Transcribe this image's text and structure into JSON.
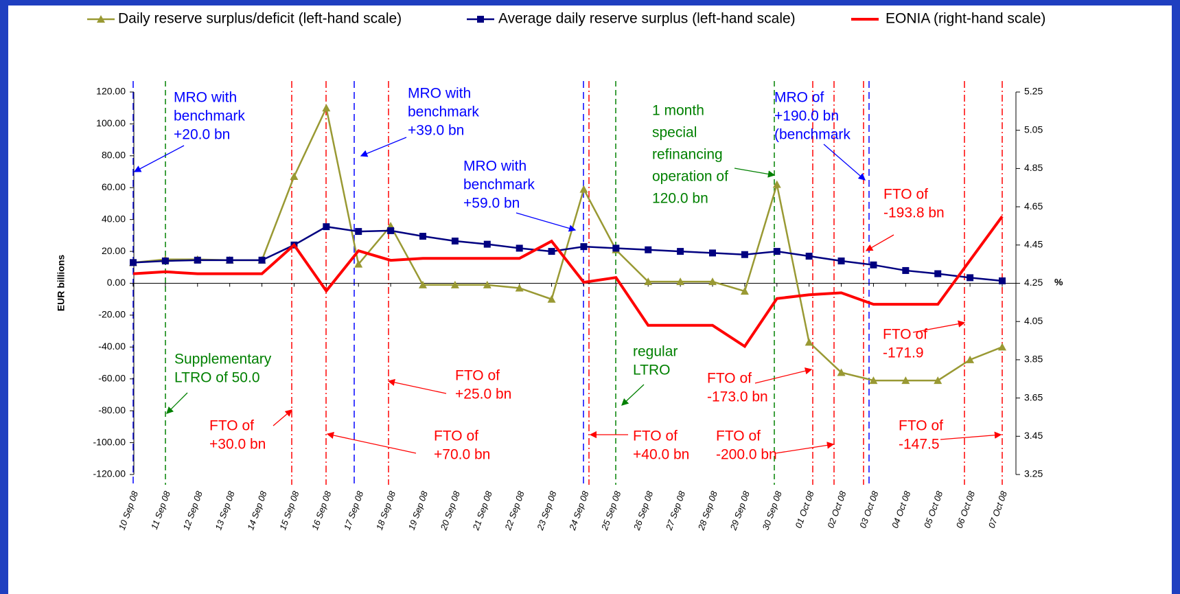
{
  "chart_data": {
    "type": "line",
    "categories": [
      "10 Sep 08",
      "11 Sep 08",
      "12 Sep 08",
      "13 Sep 08",
      "14 Sep 08",
      "15 Sep 08",
      "16 Sep 08",
      "17 Sep 08",
      "18 Sep 08",
      "19 Sep 08",
      "20 Sep 08",
      "21 Sep 08",
      "22 Sep 08",
      "23 Sep 08",
      "24 Sep 08",
      "25 Sep 08",
      "26 Sep 08",
      "27 Sep 08",
      "28 Sep 08",
      "29 Sep 08",
      "30 Sep 08",
      "01 Oct 08",
      "02 Oct 08",
      "03 Oct 08",
      "04 Oct 08",
      "05 Oct 08",
      "06 Oct 08",
      "07 Oct 08"
    ],
    "series": [
      {
        "name": "Daily reserve surplus/deficit (left-hand scale)",
        "color": "#999933",
        "marker": "triangle",
        "values": [
          13,
          15,
          15,
          14.5,
          14.5,
          67,
          110,
          12,
          36,
          -1,
          -1,
          -1,
          -3,
          -10,
          59,
          21,
          1,
          1,
          1,
          -5,
          62,
          -37,
          -56,
          -61,
          -61,
          -61,
          -48,
          -40
        ]
      },
      {
        "name": "Average daily reserve surplus (left-hand scale)",
        "color": "#000080",
        "marker": "square",
        "values": [
          13,
          14,
          14.5,
          14.5,
          14.5,
          24,
          35.5,
          32.5,
          33,
          29.5,
          26.5,
          24.5,
          22,
          20,
          23,
          22,
          21,
          20,
          19,
          18,
          20,
          17,
          14,
          11.5,
          8,
          6,
          3.5,
          1.5
        ]
      },
      {
        "name": "EONIA (right-hand scale)",
        "color": "#ff0000",
        "marker": "none",
        "axis": "y2",
        "values": [
          4.3,
          4.31,
          4.3,
          4.3,
          4.3,
          4.45,
          4.21,
          4.42,
          4.37,
          4.38,
          4.38,
          4.38,
          4.38,
          4.47,
          4.255,
          4.28,
          4.03,
          4.03,
          4.03,
          3.92,
          4.17,
          4.19,
          4.2,
          4.14,
          4.14,
          4.14,
          4.37,
          4.6
        ]
      }
    ],
    "ylabel": "EUR billions",
    "y2label": "%",
    "ylim": [
      -120,
      120
    ],
    "yticks": [
      {
        "value": -120,
        "label": "-120.00"
      },
      {
        "value": -100,
        "label": "-100.00"
      },
      {
        "value": -80,
        "label": "-80.00"
      },
      {
        "value": -60,
        "label": "-60.00"
      },
      {
        "value": -40,
        "label": "-40.00"
      },
      {
        "value": -20,
        "label": "-20.00"
      },
      {
        "value": 0,
        "label": "0.00"
      },
      {
        "value": 20,
        "label": "20.00"
      },
      {
        "value": 40,
        "label": "40.00"
      },
      {
        "value": 60,
        "label": "60.00"
      },
      {
        "value": 80,
        "label": "80.00"
      },
      {
        "value": 100,
        "label": "100.00"
      },
      {
        "value": 120,
        "label": "120.00"
      }
    ],
    "y2lim": [
      3.25,
      5.25
    ],
    "y2ticks": [
      3.25,
      3.45,
      3.65,
      3.85,
      4.05,
      4.25,
      4.45,
      4.65,
      4.85,
      5.05,
      5.25
    ],
    "annotations": [
      {
        "lines": [
          "MRO with",
          "benchmark",
          "+20.0 bn"
        ],
        "color": "#0000ff"
      },
      {
        "lines": [
          "MRO with",
          "benchmark",
          "+39.0 bn"
        ],
        "color": "#0000ff"
      },
      {
        "lines": [
          "MRO with",
          "benchmark",
          "+59.0 bn"
        ],
        "color": "#0000ff"
      },
      {
        "lines": [
          "1 month",
          "special",
          "refinancing",
          "operation of",
          "120.0 bn"
        ],
        "color": "#008000"
      },
      {
        "lines": [
          "MRO of",
          "+190.0 bn",
          "(benchmark"
        ],
        "color": "#0000ff"
      },
      {
        "lines": [
          "FTO of",
          "-193.8 bn"
        ],
        "color": "#ff0000"
      },
      {
        "lines": [
          "Supplementary",
          "LTRO of 50.0"
        ],
        "color": "#008000"
      },
      {
        "lines": [
          "FTO of",
          "+30.0 bn"
        ],
        "color": "#ff0000"
      },
      {
        "lines": [
          "FTO of",
          "+25.0 bn"
        ],
        "color": "#ff0000"
      },
      {
        "lines": [
          "FTO of",
          "+70.0 bn"
        ],
        "color": "#ff0000"
      },
      {
        "lines": [
          "regular",
          "LTRO"
        ],
        "color": "#008000"
      },
      {
        "lines": [
          "FTO of",
          "+40.0 bn"
        ],
        "color": "#ff0000"
      },
      {
        "lines": [
          "FTO of",
          "-173.0 bn"
        ],
        "color": "#ff0000"
      },
      {
        "lines": [
          "FTO of",
          "-200.0 bn"
        ],
        "color": "#ff0000"
      },
      {
        "lines": [
          "FTO of",
          "-171.9"
        ],
        "color": "#ff0000"
      },
      {
        "lines": [
          "FTO of",
          "-147.5"
        ],
        "color": "#ff0000"
      }
    ]
  }
}
